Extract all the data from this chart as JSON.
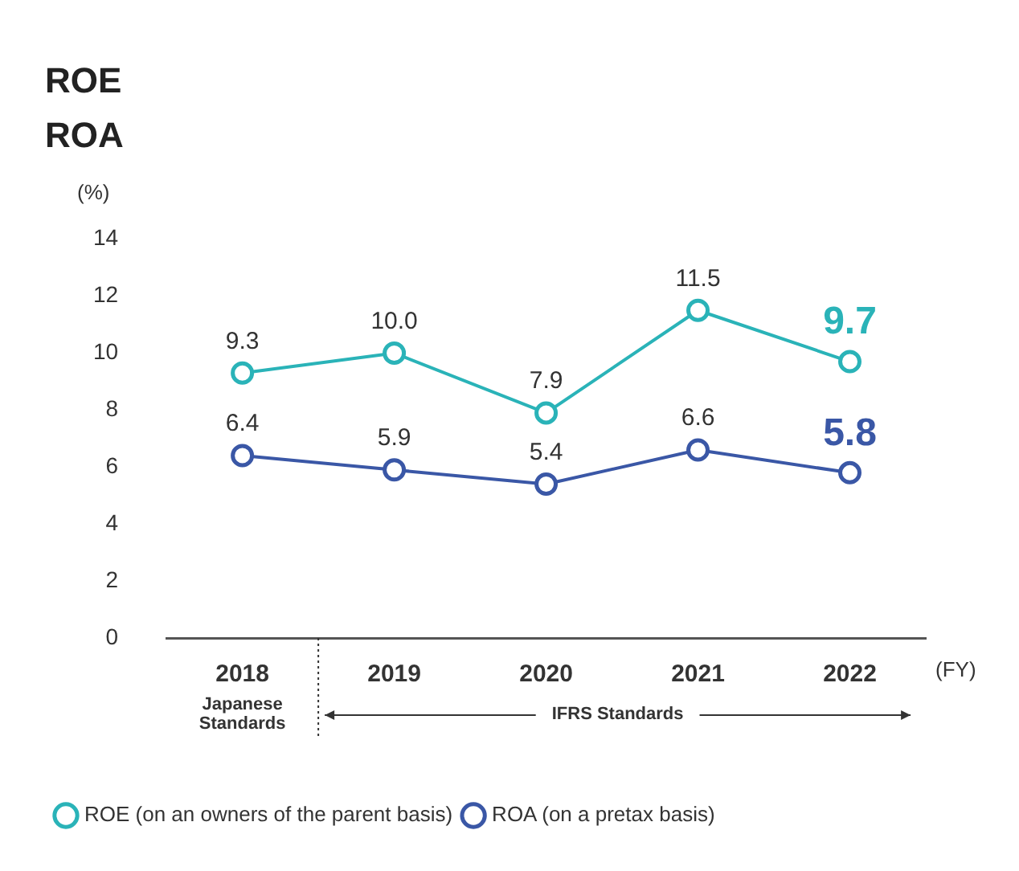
{
  "chart_data": {
    "type": "line",
    "title": "ROE",
    "subtitle": "ROA",
    "ylabel": "(%)",
    "xlabel": "(FY)",
    "categories": [
      "2018",
      "2019",
      "2020",
      "2021",
      "2022"
    ],
    "series": [
      {
        "name": "ROE (on an owners of the parent basis)",
        "color": "#2ab3b8",
        "values": [
          9.3,
          10.0,
          7.9,
          11.5,
          9.7
        ]
      },
      {
        "name": "ROA (on a pretax basis)",
        "color": "#3a57a6",
        "values": [
          6.4,
          5.9,
          5.4,
          6.6,
          5.8
        ]
      }
    ],
    "value_labels": [
      [
        "9.3",
        "10.0",
        "7.9",
        "11.5",
        "9.7"
      ],
      [
        "6.4",
        "5.9",
        "5.4",
        "6.6",
        "5.8"
      ]
    ],
    "ylim": [
      0,
      14
    ],
    "yticks": [
      0,
      2,
      4,
      6,
      8,
      10,
      12,
      14
    ],
    "grid": false,
    "marker": "circle",
    "line_style": "solid",
    "legend": "bottom left",
    "annotations": [
      "Japanese\nStandards",
      "IFRS Standards"
    ]
  }
}
